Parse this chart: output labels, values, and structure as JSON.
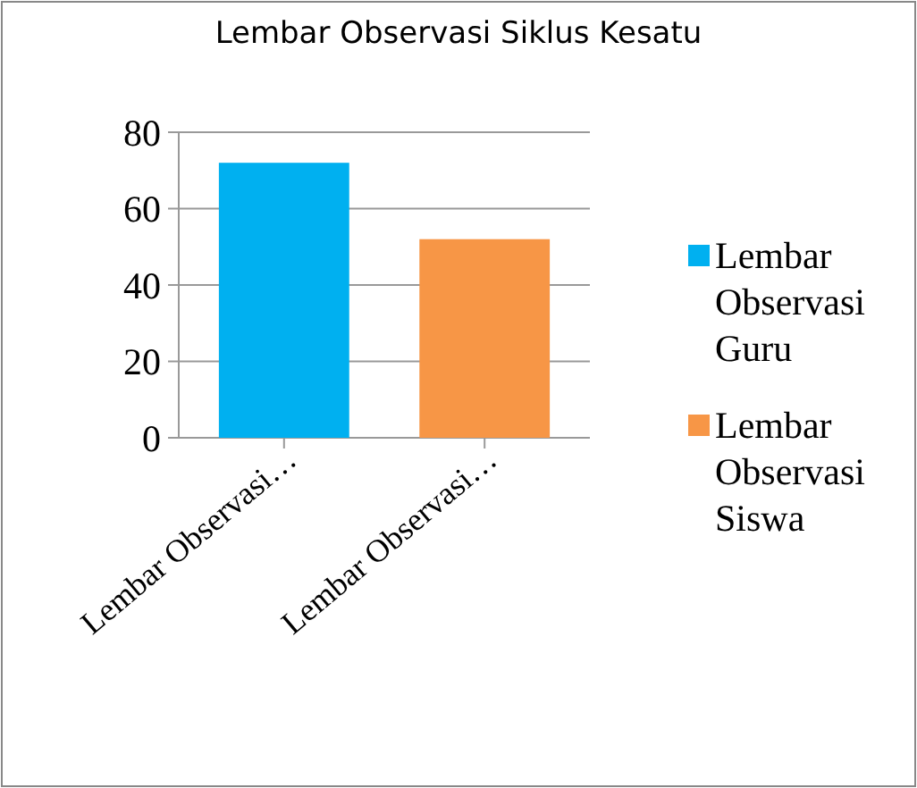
{
  "chart_data": {
    "type": "bar",
    "title": "Lembar Observasi Siklus Kesatu",
    "categories": [
      "Lembar Observasi…",
      "Lembar Observasi…"
    ],
    "series": [
      {
        "name": "Lembar Observasi Guru",
        "color": "#00b0f0",
        "values": [
          72,
          null
        ]
      },
      {
        "name": "Lembar Observasi Siswa",
        "color": "#f79646",
        "values": [
          null,
          52
        ]
      }
    ],
    "ylim": [
      0,
      80
    ],
    "yticks": [
      0,
      20,
      40,
      60,
      80
    ],
    "grid": "y",
    "legend": "right"
  }
}
